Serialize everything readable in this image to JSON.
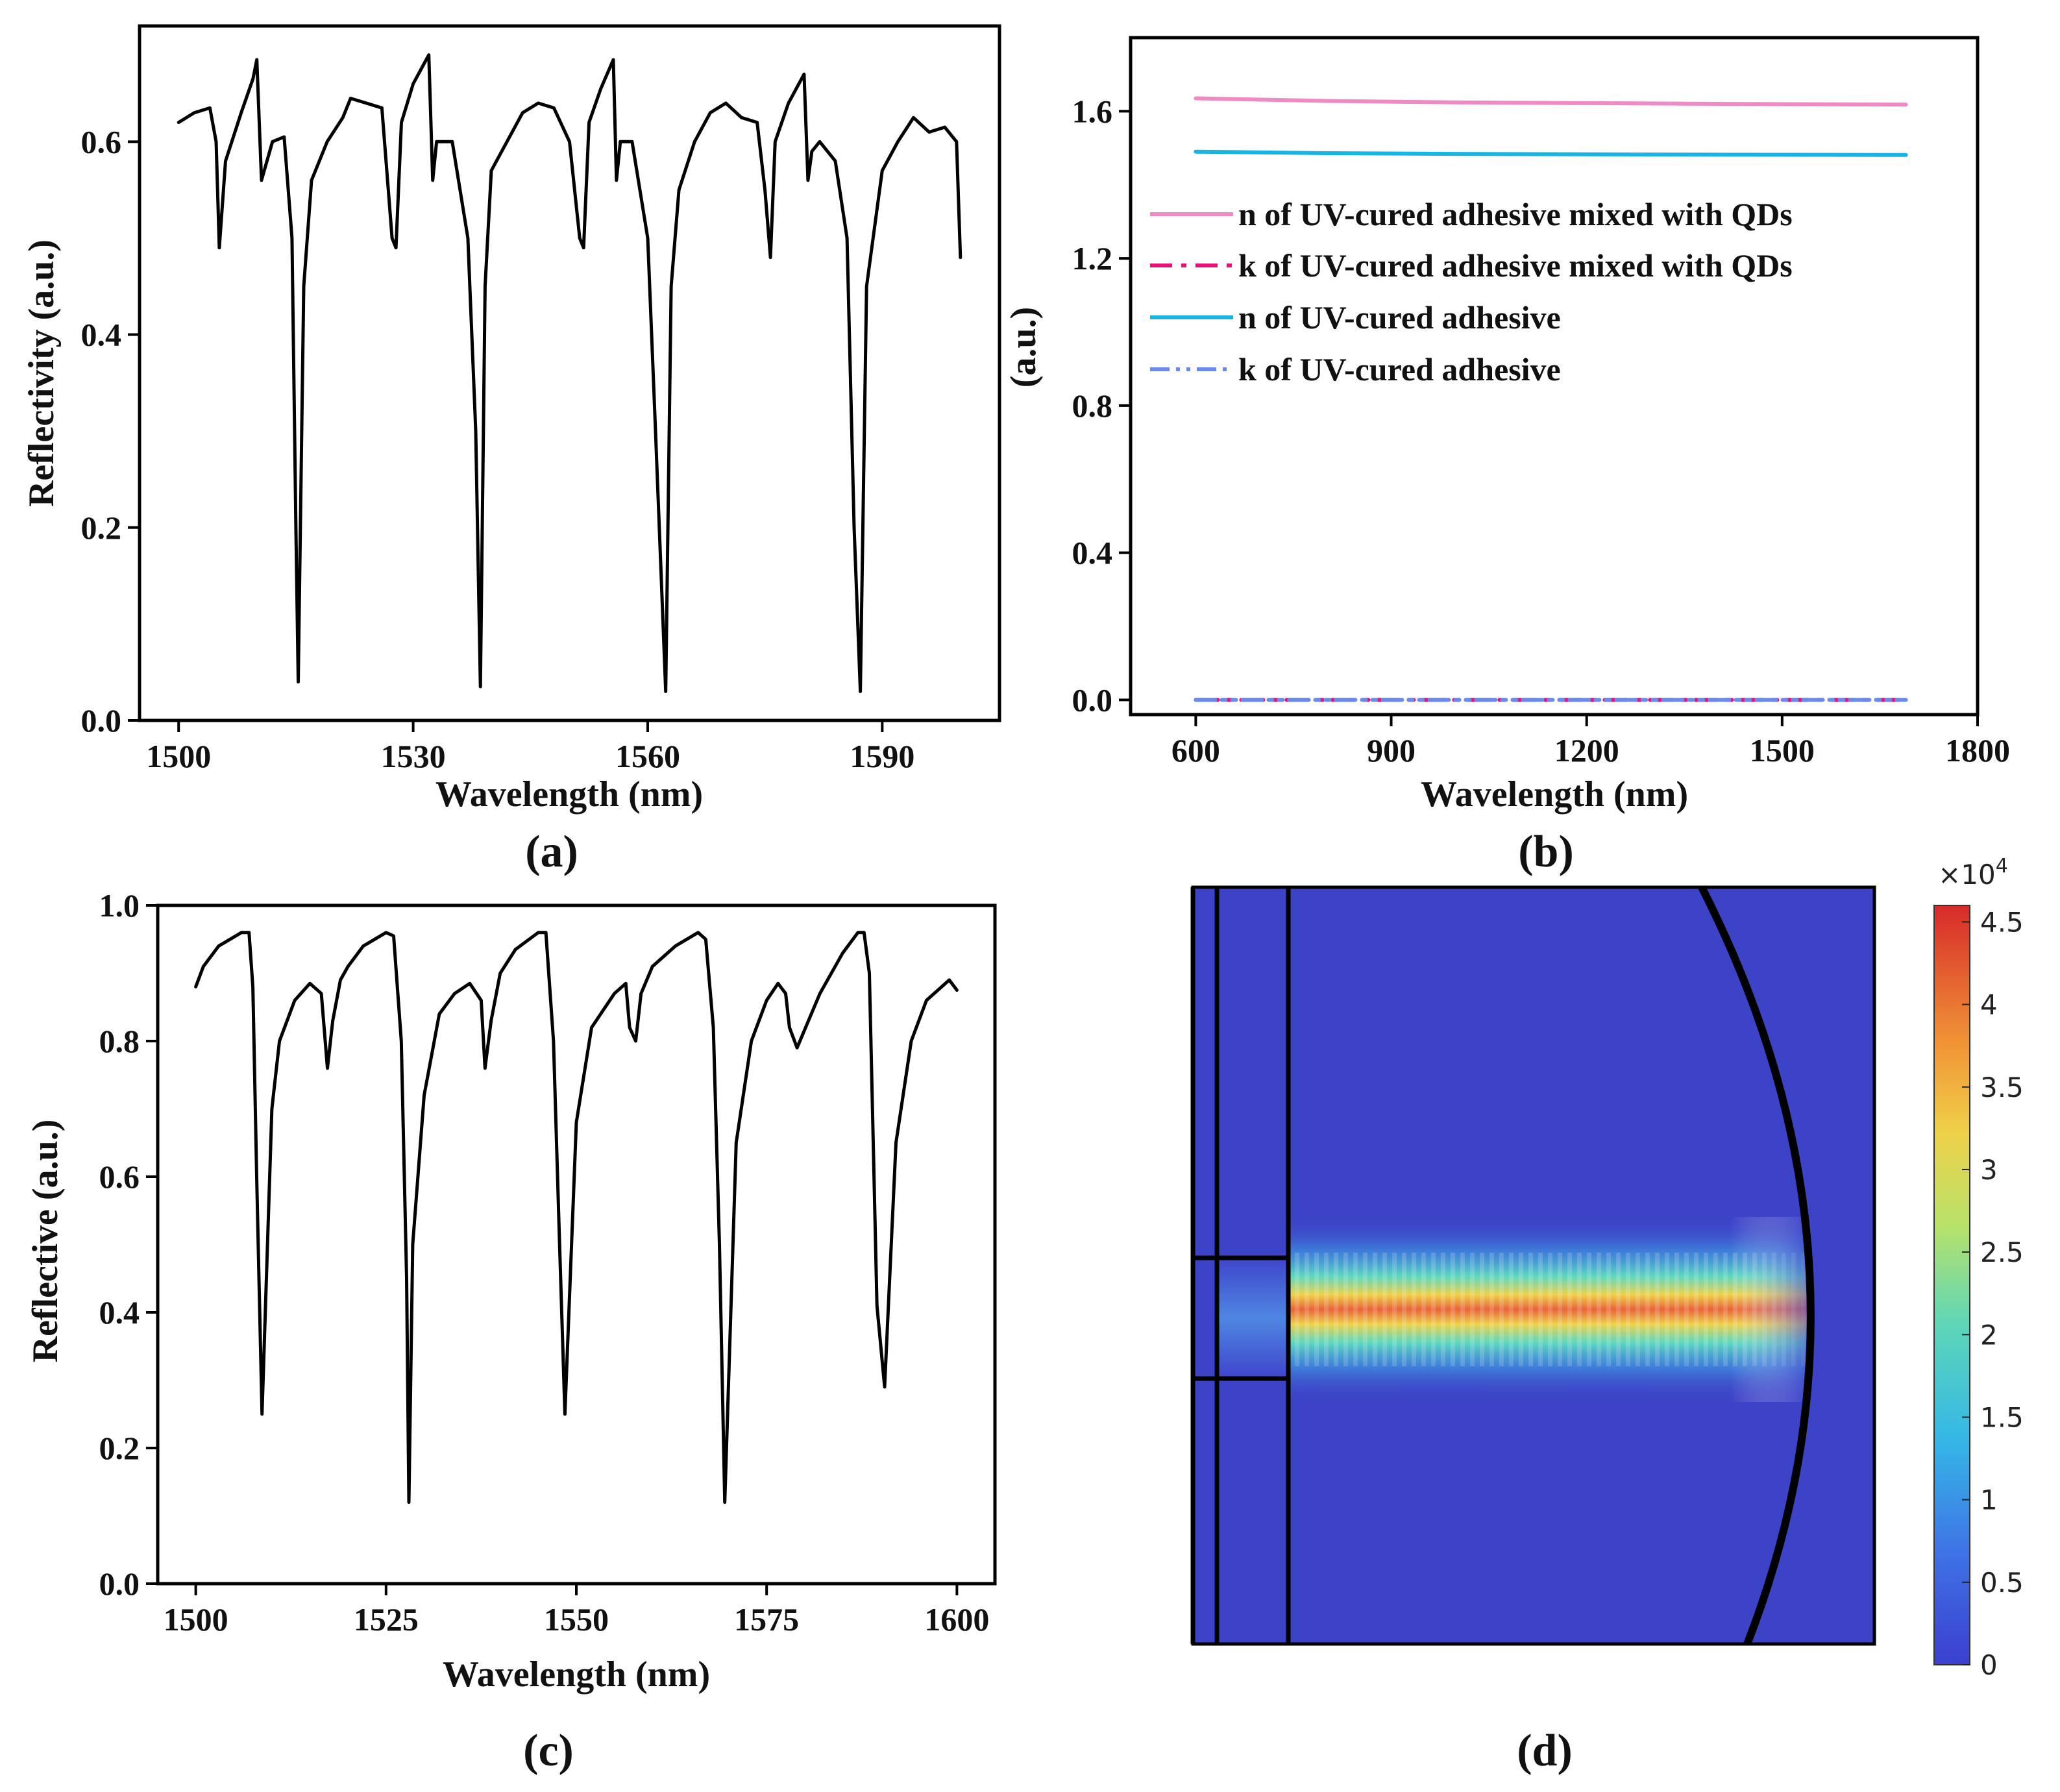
{
  "figure": {
    "panel_labels": [
      "(a)",
      "(b)",
      "(c)",
      "(d)"
    ],
    "colorbar": {
      "exponent_label": "×10",
      "exponent_power": "4",
      "min": 0,
      "max": 4.6,
      "tick_labels": [
        "0",
        "0.5",
        "1",
        "1.5",
        "2",
        "2.5",
        "3",
        "3.5",
        "4",
        "4.5"
      ],
      "tick_values": [
        0,
        0.5,
        1,
        1.5,
        2,
        2.5,
        3,
        3.5,
        4,
        4.5
      ]
    }
  },
  "chart_data": [
    {
      "id": "a",
      "type": "line",
      "title": "",
      "xlabel": "Wavelength (nm)",
      "ylabel": "Reflectivity (a.u.)",
      "xlim": [
        1495,
        1605
      ],
      "ylim": [
        0,
        0.72
      ],
      "x_ticks": [
        1500,
        1530,
        1560,
        1590
      ],
      "y_ticks": [
        0.0,
        0.2,
        0.4,
        0.6
      ],
      "y_tick_labels": [
        "0.0",
        "0.2",
        "0.4",
        "0.6"
      ],
      "series": [
        {
          "name": "reflectivity",
          "color": "#000000",
          "x": [
            1500,
            1502,
            1504,
            1504.8,
            1505.2,
            1506,
            1508,
            1509.5,
            1510,
            1510.6,
            1512,
            1513.5,
            1514.5,
            1515,
            1515.3,
            1516,
            1517,
            1519,
            1521,
            1522,
            1524,
            1526,
            1527.3,
            1527.8,
            1528.5,
            1530,
            1532,
            1532.5,
            1533,
            1535,
            1537,
            1538,
            1538.6,
            1539.2,
            1540,
            1542,
            1544,
            1546,
            1548,
            1550,
            1551.3,
            1551.8,
            1552.5,
            1554,
            1555.6,
            1556,
            1556.5,
            1558,
            1560,
            1561,
            1562.3,
            1563,
            1564,
            1566,
            1568,
            1570,
            1572,
            1574,
            1575,
            1575.7,
            1576.3,
            1578,
            1580,
            1580.5,
            1581,
            1582,
            1584,
            1585.5,
            1586.4,
            1587.2,
            1588,
            1590,
            1592,
            1594,
            1596,
            1598,
            1599.5,
            1600
          ],
          "values": [
            0.62,
            0.63,
            0.635,
            0.6,
            0.49,
            0.58,
            0.63,
            0.665,
            0.685,
            0.56,
            0.6,
            0.605,
            0.5,
            0.2,
            0.04,
            0.45,
            0.56,
            0.6,
            0.625,
            0.645,
            0.64,
            0.635,
            0.5,
            0.49,
            0.62,
            0.66,
            0.69,
            0.56,
            0.6,
            0.6,
            0.5,
            0.3,
            0.035,
            0.45,
            0.57,
            0.6,
            0.63,
            0.64,
            0.635,
            0.6,
            0.5,
            0.49,
            0.62,
            0.655,
            0.685,
            0.56,
            0.6,
            0.6,
            0.5,
            0.3,
            0.03,
            0.45,
            0.55,
            0.6,
            0.63,
            0.64,
            0.625,
            0.62,
            0.55,
            0.48,
            0.6,
            0.64,
            0.67,
            0.56,
            0.59,
            0.6,
            0.58,
            0.5,
            0.2,
            0.03,
            0.45,
            0.57,
            0.6,
            0.625,
            0.61,
            0.615,
            0.6,
            0.48
          ]
        }
      ]
    },
    {
      "id": "b",
      "type": "line",
      "title": "",
      "xlabel": "Wavelength (nm)",
      "ylabel": "(a.u.)",
      "xlim": [
        500,
        1800
      ],
      "ylim": [
        -0.04,
        1.8
      ],
      "x_ticks": [
        600,
        900,
        1200,
        1500,
        1800
      ],
      "y_ticks": [
        0.0,
        0.4,
        0.8,
        1.2,
        1.6
      ],
      "y_tick_labels": [
        "0.0",
        "0.4",
        "0.8",
        "1.2",
        "1.6"
      ],
      "legend_position": "center-left",
      "series": [
        {
          "name": "n of UV-cured adhesive mixed with QDs",
          "color": "#f08ac4",
          "dash": "solid",
          "x": [
            600,
            800,
            1000,
            1200,
            1400,
            1690
          ],
          "values": [
            1.635,
            1.628,
            1.624,
            1.622,
            1.62,
            1.618
          ]
        },
        {
          "name": "k of UV-cured adhesive mixed with QDs",
          "color": "#e8107a",
          "dash": "dashdot",
          "x": [
            600,
            1690
          ],
          "values": [
            0.0,
            0.0
          ]
        },
        {
          "name": "n of UV-cured adhesive",
          "color": "#18b4e4",
          "dash": "solid",
          "x": [
            600,
            800,
            1000,
            1200,
            1400,
            1690
          ],
          "values": [
            1.49,
            1.486,
            1.484,
            1.483,
            1.482,
            1.481
          ]
        },
        {
          "name": "k of UV-cured adhesive",
          "color": "#6a8af0",
          "dash": "dashdotdot",
          "x": [
            600,
            1690
          ],
          "values": [
            0.0,
            0.0
          ]
        }
      ]
    },
    {
      "id": "c",
      "type": "line",
      "title": "",
      "xlabel": "Wavelength (nm)",
      "ylabel": "Reflective (a.u.)",
      "xlim": [
        1495,
        1605
      ],
      "ylim": [
        0,
        1.0
      ],
      "x_ticks": [
        1500,
        1525,
        1550,
        1575,
        1600
      ],
      "y_ticks": [
        0.0,
        0.2,
        0.4,
        0.6,
        0.8,
        1.0
      ],
      "y_tick_labels": [
        "0.0",
        "0.2",
        "0.4",
        "0.6",
        "0.8",
        "1.0"
      ],
      "series": [
        {
          "name": "reflective",
          "color": "#000000",
          "x": [
            1500,
            1501,
            1503,
            1506,
            1507,
            1507.5,
            1508,
            1508.7,
            1510,
            1511,
            1513,
            1515,
            1516.5,
            1517.3,
            1518,
            1519,
            1520,
            1522,
            1525,
            1526,
            1527,
            1527.7,
            1528,
            1528.5,
            1530,
            1532,
            1534,
            1536,
            1537.5,
            1538,
            1538.8,
            1540,
            1542,
            1545,
            1546,
            1547,
            1547.8,
            1548.5,
            1550,
            1552,
            1555,
            1556.5,
            1557,
            1557.8,
            1558.5,
            1560,
            1563,
            1566,
            1567,
            1568,
            1568.8,
            1569.5,
            1571,
            1573,
            1575,
            1576.5,
            1577.5,
            1578,
            1579,
            1582,
            1585,
            1587,
            1587.8,
            1588.5,
            1589.5,
            1590.5,
            1592,
            1594,
            1596,
            1599,
            1600
          ],
          "values": [
            0.88,
            0.91,
            0.94,
            0.96,
            0.96,
            0.88,
            0.6,
            0.25,
            0.7,
            0.8,
            0.86,
            0.885,
            0.87,
            0.76,
            0.83,
            0.89,
            0.91,
            0.94,
            0.96,
            0.955,
            0.8,
            0.45,
            0.12,
            0.5,
            0.72,
            0.84,
            0.87,
            0.885,
            0.86,
            0.76,
            0.83,
            0.9,
            0.935,
            0.96,
            0.96,
            0.8,
            0.5,
            0.25,
            0.68,
            0.82,
            0.87,
            0.885,
            0.82,
            0.8,
            0.87,
            0.91,
            0.94,
            0.96,
            0.95,
            0.82,
            0.5,
            0.12,
            0.65,
            0.8,
            0.86,
            0.885,
            0.87,
            0.82,
            0.79,
            0.87,
            0.93,
            0.96,
            0.96,
            0.9,
            0.41,
            0.29,
            0.65,
            0.8,
            0.86,
            0.89,
            0.875
          ]
        }
      ]
    },
    {
      "id": "d",
      "type": "heatmap",
      "title": "",
      "description_values": {
        "peak": 4.5,
        "background": 0.3
      }
    }
  ]
}
